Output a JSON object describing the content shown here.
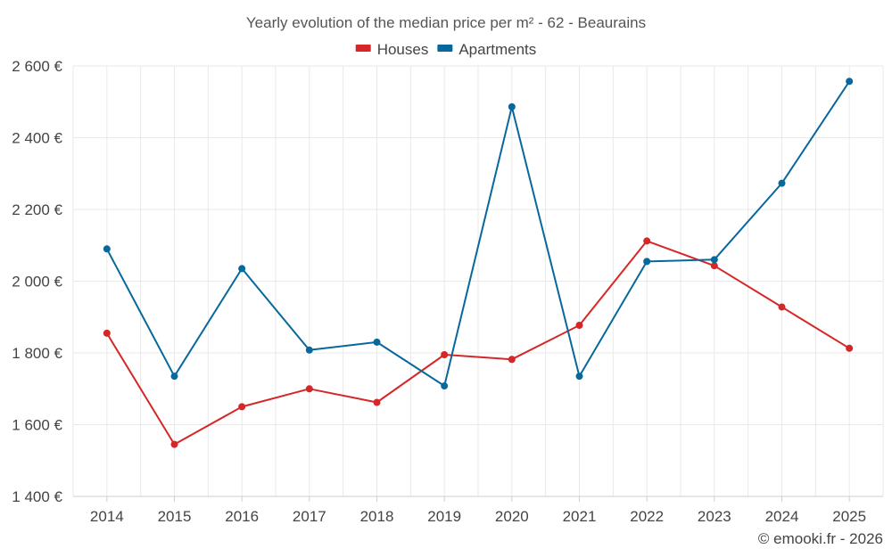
{
  "chart_data": {
    "type": "line",
    "title": "Yearly evolution of the median price per m² - 62 - Beaurains",
    "xlabel": "",
    "ylabel": "",
    "categories": [
      "2014",
      "2015",
      "2016",
      "2017",
      "2018",
      "2019",
      "2020",
      "2021",
      "2022",
      "2023",
      "2024",
      "2025"
    ],
    "ylim": [
      1400,
      2600
    ],
    "yticks": [
      1400,
      1600,
      1800,
      2000,
      2200,
      2400,
      2600
    ],
    "ytick_labels": [
      "1 400 €",
      "1 600 €",
      "1 800 €",
      "2 000 €",
      "2 200 €",
      "2 400 €",
      "2 600 €"
    ],
    "grid": true,
    "legend_position": "top-center",
    "series": [
      {
        "name": "Houses",
        "color": "#d62728",
        "values": [
          1855,
          1545,
          1650,
          1700,
          1662,
          1795,
          1782,
          1877,
          2112,
          2043,
          1928,
          1813
        ]
      },
      {
        "name": "Apartments",
        "color": "#08689c",
        "values": [
          2090,
          1735,
          2035,
          1808,
          1830,
          1708,
          2486,
          1735,
          2055,
          2060,
          2273,
          2557
        ]
      }
    ]
  },
  "credit": "© emooki.fr - 2026"
}
